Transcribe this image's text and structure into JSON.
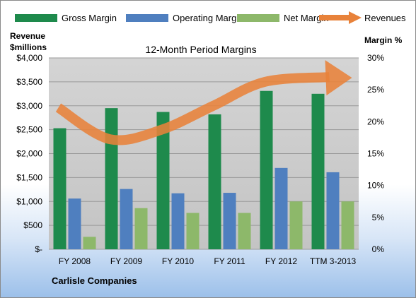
{
  "chart_data": {
    "type": "bar",
    "title": "12-Month Period Margins",
    "y_left_label": [
      "Revenue",
      "$millions"
    ],
    "y_right_label": "Margin %",
    "categories": [
      "FY 2008",
      "FY 2009",
      "FY 2010",
      "FY 2011",
      "FY 2012",
      "TTM 3-2013"
    ],
    "y_left_ticks": [
      "$-",
      "$500",
      "$1,000",
      "$1,500",
      "$2,000",
      "$2,500",
      "$3,000",
      "$3,500",
      "$4,000"
    ],
    "y_right_ticks": [
      "0%",
      "5%",
      "10%",
      "15%",
      "20%",
      "25%",
      "30%"
    ],
    "ylim": [
      0,
      4000
    ],
    "ylim_right": [
      0,
      30
    ],
    "series": [
      {
        "name": "Gross Margin",
        "kind": "bar",
        "color": "#1e8a4c",
        "values": [
          2530,
          2950,
          2870,
          2820,
          3310,
          3250
        ]
      },
      {
        "name": "Operating Margin",
        "kind": "bar",
        "color": "#4f7fbf",
        "values": [
          1060,
          1260,
          1170,
          1180,
          1700,
          1610
        ]
      },
      {
        "name": "Net Margin",
        "kind": "bar",
        "color": "#8db86a",
        "values": [
          260,
          860,
          760,
          760,
          1000,
          1000
        ]
      },
      {
        "name": "Revenues",
        "kind": "line-arrow",
        "color": "#e8823a",
        "values": [
          2960,
          2300,
          2500,
          3000,
          3500,
          3600
        ]
      }
    ],
    "legend_position": "top",
    "grid": true
  },
  "footer": {
    "company": "Carlisle Companies"
  }
}
